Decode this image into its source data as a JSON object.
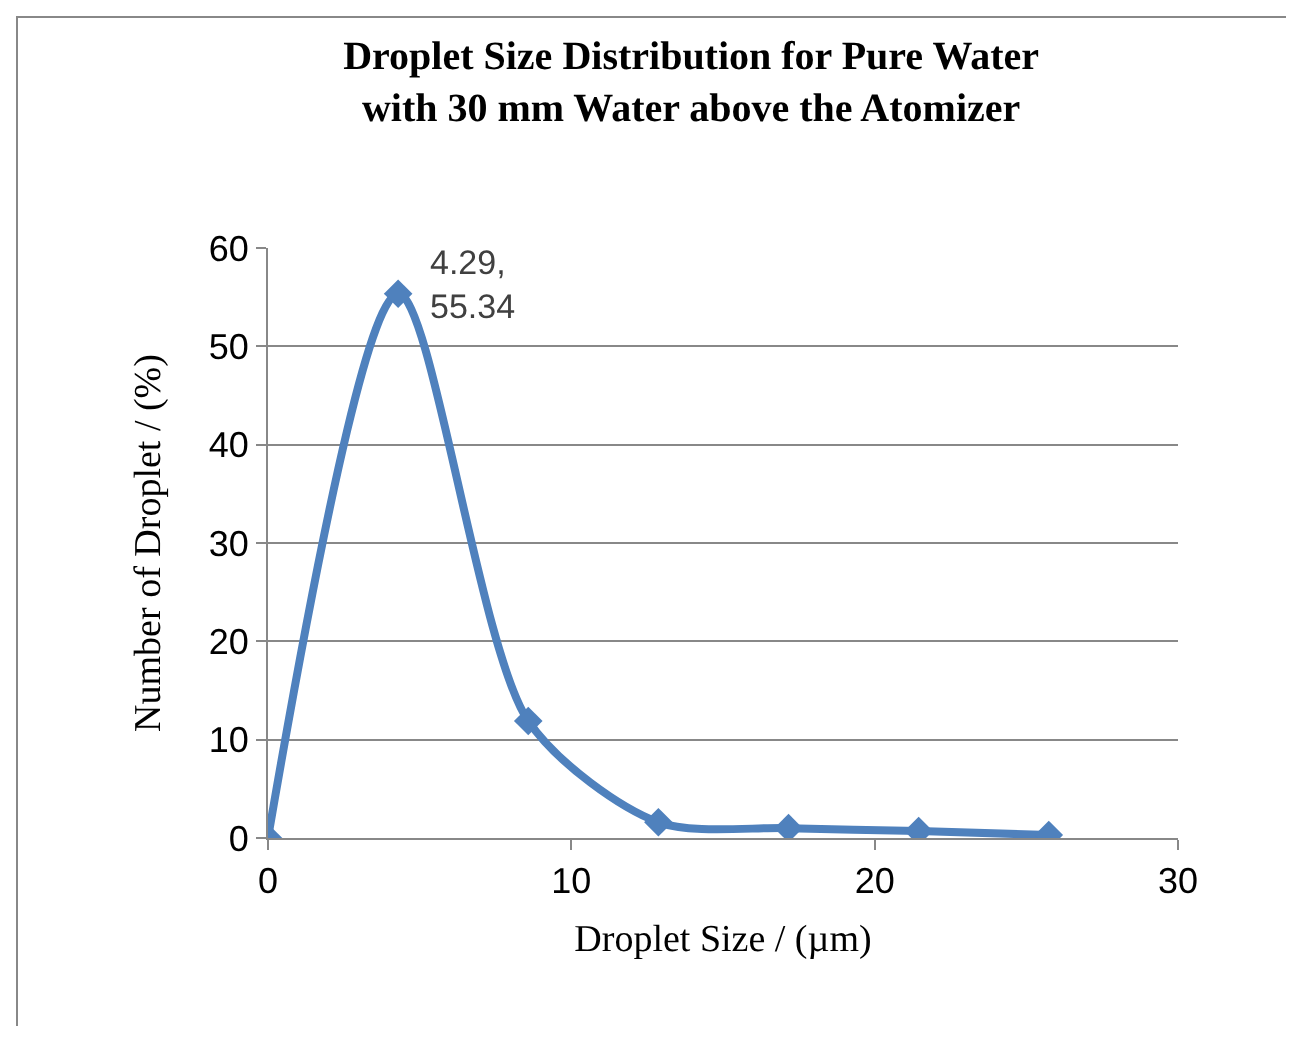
{
  "chart_data": {
    "type": "line",
    "title": "Droplet Size Distribution for Pure Water with 30 mm Water above the Atomizer",
    "xlabel": "Droplet Size / (µm)",
    "ylabel": "Number of Droplet / (%)",
    "x": [
      0,
      4.29,
      8.58,
      12.87,
      17.16,
      21.45,
      25.74
    ],
    "series": [
      {
        "color": "#4f81bd",
        "values": [
          0,
          55.34,
          11.9,
          1.6,
          1.0,
          0.7,
          0.3
        ],
        "value_labels": [
          null,
          "4.29, 55.34",
          null,
          null,
          null,
          null,
          null
        ]
      }
    ],
    "xlim": [
      0,
      30
    ],
    "xticks": [
      0,
      10,
      20,
      30
    ],
    "ylim": [
      0,
      60
    ],
    "yticks": [
      0,
      10,
      20,
      30,
      40,
      50,
      60
    ],
    "grid": "y",
    "marker": "diamond",
    "line_style": "solid"
  }
}
